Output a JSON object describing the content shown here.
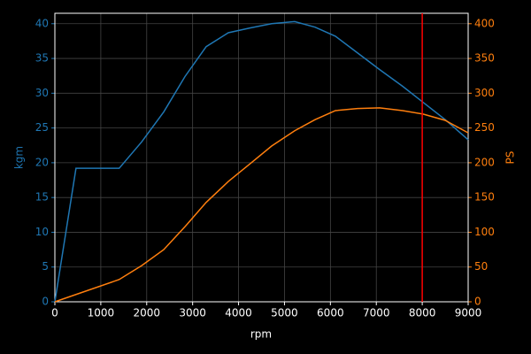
{
  "chart_data": {
    "type": "line",
    "xlabel": "rpm",
    "ylabel": "kgm",
    "y2label": "PS",
    "x": [
      0,
      460,
      1400,
      1890,
      2370,
      2833,
      3295,
      3777,
      4259,
      4720,
      5222,
      5666,
      6109,
      6590,
      7072,
      7573,
      8017,
      8500,
      9000
    ],
    "series": [
      {
        "name": "kgm",
        "color": "#1f77b4",
        "axis": "y",
        "values": [
          0,
          19.2,
          19.2,
          23.0,
          27.3,
          32.4,
          36.7,
          38.7,
          39.4,
          40.0,
          40.3,
          39.5,
          38.2,
          35.8,
          33.4,
          31.0,
          28.7,
          26.2,
          23.3
        ]
      },
      {
        "name": "PS",
        "color": "#ff7f0e",
        "axis": "y2",
        "values": [
          0,
          10.5,
          32,
          52,
          75,
          108,
          143,
          173,
          199,
          224,
          246,
          262,
          275,
          278,
          279,
          275,
          270,
          261,
          243
        ]
      }
    ],
    "vline": {
      "x": 8000,
      "color": "#ff0000"
    },
    "xlim": [
      0,
      9000
    ],
    "xticks": [
      0,
      1000,
      2000,
      3000,
      4000,
      5000,
      6000,
      7000,
      8000,
      9000
    ],
    "ylim": [
      0,
      41.5
    ],
    "yticks": [
      0,
      5,
      10,
      15,
      20,
      25,
      30,
      35,
      40
    ],
    "y2lim": [
      0,
      415
    ],
    "y2ticks": [
      0,
      50,
      100,
      150,
      200,
      250,
      300,
      350,
      400
    ],
    "grid": true
  }
}
